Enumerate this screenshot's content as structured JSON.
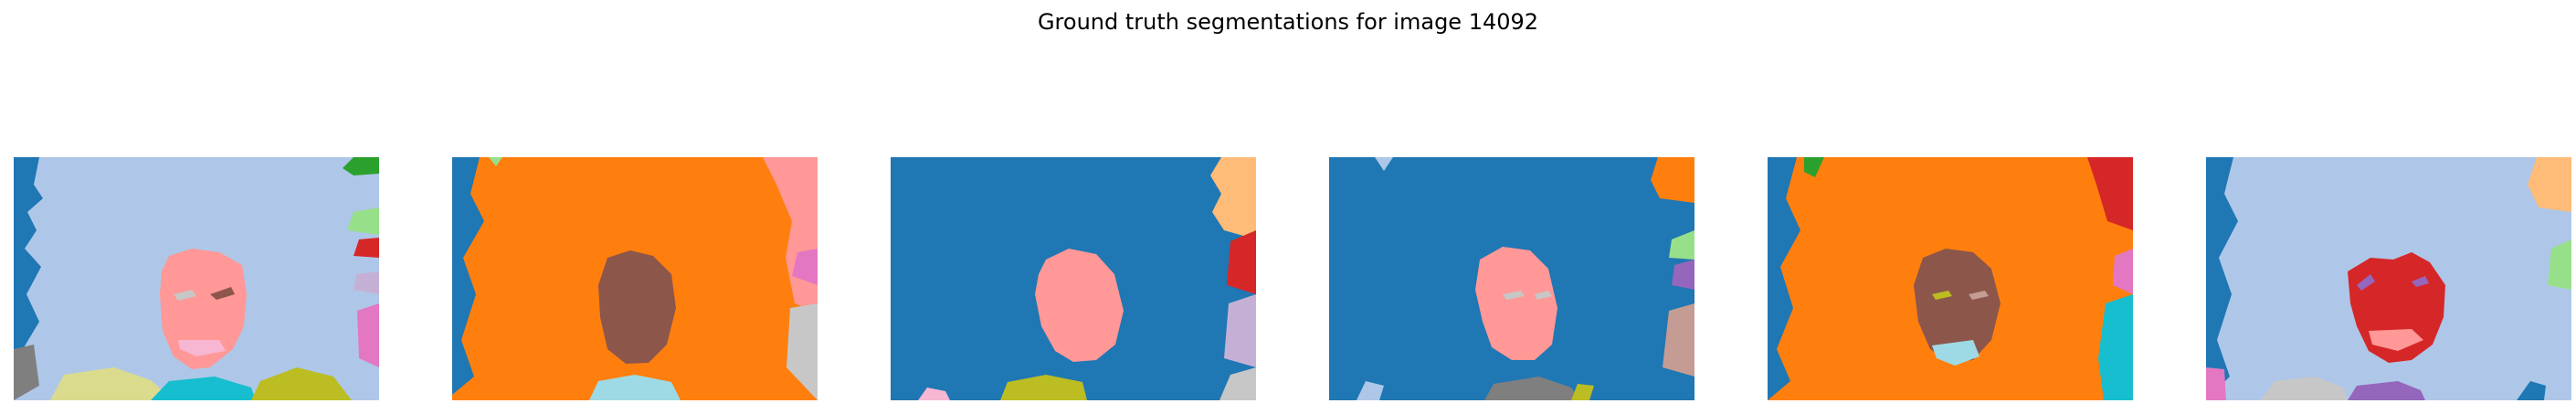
{
  "figure": {
    "title": "Ground truth segmentations for image 14092",
    "colors": {
      "steel_blue": "#1f77b4",
      "light_blue": "#aec7e8",
      "orange": "#ff7f0e",
      "light_orange": "#ffbb78",
      "green": "#2ca02c",
      "light_green": "#98df8a",
      "red": "#d62728",
      "pink": "#ff9896",
      "purple": "#9467bd",
      "lavender": "#c5b0d5",
      "brown": "#8c564b",
      "tan": "#c49c94",
      "magenta": "#e377c2",
      "light_pink": "#f7b6d2",
      "gray": "#7f7f7f",
      "light_gray": "#c7c7c7",
      "olive": "#bcbd22",
      "khaki": "#dbdb8d",
      "cyan": "#17becf",
      "light_cyan": "#9edae5"
    }
  }
}
